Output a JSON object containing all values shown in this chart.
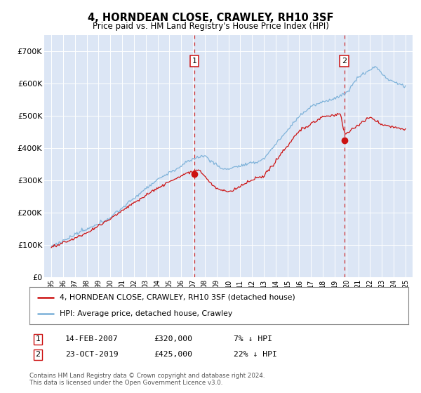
{
  "title": "4, HORNDEAN CLOSE, CRAWLEY, RH10 3SF",
  "subtitle": "Price paid vs. HM Land Registry's House Price Index (HPI)",
  "legend_line1": "4, HORNDEAN CLOSE, CRAWLEY, RH10 3SF (detached house)",
  "legend_line2": "HPI: Average price, detached house, Crawley",
  "annotation1_label": "1",
  "annotation1_date": "14-FEB-2007",
  "annotation1_price": "£320,000",
  "annotation1_pct": "7% ↓ HPI",
  "annotation1_year": 2007.12,
  "annotation1_value": 320000,
  "annotation2_label": "2",
  "annotation2_date": "23-OCT-2019",
  "annotation2_price": "£425,000",
  "annotation2_pct": "22% ↓ HPI",
  "annotation2_year": 2019.81,
  "annotation2_value": 425000,
  "footer": "Contains HM Land Registry data © Crown copyright and database right 2024.\nThis data is licensed under the Open Government Licence v3.0.",
  "bg_color": "#dce6f5",
  "hpi_color": "#7ab0d8",
  "price_color": "#cc1111",
  "vline_color": "#cc1111",
  "ylim": [
    0,
    750000
  ],
  "yticks": [
    0,
    100000,
    200000,
    300000,
    400000,
    500000,
    600000,
    700000
  ],
  "ytick_labels": [
    "£0",
    "£100K",
    "£200K",
    "£300K",
    "£400K",
    "£500K",
    "£600K",
    "£700K"
  ],
  "xstart": 1995,
  "xend": 2025
}
